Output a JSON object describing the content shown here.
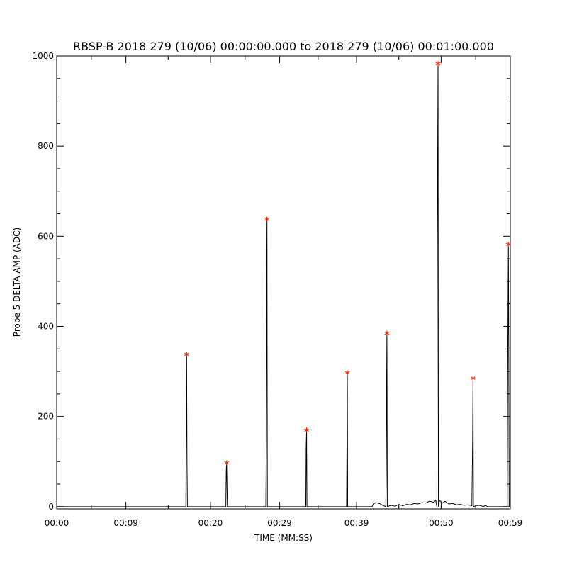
{
  "chart_data": {
    "type": "line",
    "title": "RBSP-B 2018 279 (10/06) 00:00:00.000 to 2018 279 (10/06) 00:01:00.000",
    "xlabel": "TIME (MM:SS)",
    "ylabel": "Probe 5 DELTA AMP (ADC)",
    "xlim": [
      0,
      59
    ],
    "ylim": [
      -5,
      1000
    ],
    "x_ticks": [
      {
        "value": 0,
        "label": "00:00"
      },
      {
        "value": 9,
        "label": "00:09"
      },
      {
        "value": 20,
        "label": "00:20"
      },
      {
        "value": 29,
        "label": "00:29"
      },
      {
        "value": 39,
        "label": "00:39"
      },
      {
        "value": 50,
        "label": "00:50"
      },
      {
        "value": 59,
        "label": "00:59"
      }
    ],
    "y_ticks": [
      {
        "value": 0,
        "label": "0"
      },
      {
        "value": 200,
        "label": "200"
      },
      {
        "value": 400,
        "label": "400"
      },
      {
        "value": 600,
        "label": "600"
      },
      {
        "value": 800,
        "label": "800"
      },
      {
        "value": 1000,
        "label": "1000"
      }
    ],
    "grid": false,
    "series": [
      {
        "color": "#000000",
        "points": [
          [
            0,
            0
          ],
          [
            16.8,
            0
          ],
          [
            16.85,
            180
          ],
          [
            16.9,
            338
          ],
          [
            16.95,
            90
          ],
          [
            17.0,
            0
          ],
          [
            22.0,
            0
          ],
          [
            22.05,
            80
          ],
          [
            22.1,
            97
          ],
          [
            22.15,
            45
          ],
          [
            22.2,
            0
          ],
          [
            27.2,
            0
          ],
          [
            27.25,
            115
          ],
          [
            27.3,
            435
          ],
          [
            27.35,
            638
          ],
          [
            27.4,
            0
          ],
          [
            32.4,
            0
          ],
          [
            32.45,
            130
          ],
          [
            32.5,
            170
          ],
          [
            32.55,
            0
          ],
          [
            37.7,
            0
          ],
          [
            37.75,
            140
          ],
          [
            37.8,
            297
          ],
          [
            37.85,
            0
          ],
          [
            41.0,
            0
          ],
          [
            41.2,
            6
          ],
          [
            41.5,
            9
          ],
          [
            42.0,
            7
          ],
          [
            42.4,
            3
          ],
          [
            42.8,
            0
          ],
          [
            42.85,
            65
          ],
          [
            42.9,
            245
          ],
          [
            42.95,
            385
          ],
          [
            43.0,
            0
          ],
          [
            43.5,
            3
          ],
          [
            44.0,
            1
          ],
          [
            44.5,
            5
          ],
          [
            45.0,
            2
          ],
          [
            45.5,
            5
          ],
          [
            46.0,
            4
          ],
          [
            46.5,
            7
          ],
          [
            47.0,
            6
          ],
          [
            47.5,
            9
          ],
          [
            48.0,
            8
          ],
          [
            48.5,
            12
          ],
          [
            49.0,
            10
          ],
          [
            49.3,
            14
          ],
          [
            49.45,
            0
          ],
          [
            49.5,
            575
          ],
          [
            49.55,
            768
          ],
          [
            49.6,
            983
          ],
          [
            49.65,
            0
          ],
          [
            49.8,
            14
          ],
          [
            50.2,
            8
          ],
          [
            50.5,
            12
          ],
          [
            51.0,
            6
          ],
          [
            51.5,
            7
          ],
          [
            52.0,
            4
          ],
          [
            52.5,
            5
          ],
          [
            53.0,
            3
          ],
          [
            53.5,
            4
          ],
          [
            54.0,
            2
          ],
          [
            54.1,
            150
          ],
          [
            54.15,
            285
          ],
          [
            54.2,
            0
          ],
          [
            54.5,
            2
          ],
          [
            55.0,
            3
          ],
          [
            55.5,
            0
          ],
          [
            55.8,
            3
          ],
          [
            56.0,
            0
          ],
          [
            58.6,
            0
          ],
          [
            58.65,
            250
          ],
          [
            58.7,
            435
          ],
          [
            58.75,
            582
          ],
          [
            58.8,
            335
          ],
          [
            58.85,
            0
          ]
        ]
      }
    ],
    "markers": {
      "color": "#ff2200",
      "symbol": "asterisk",
      "points": [
        [
          16.9,
          338
        ],
        [
          22.1,
          97
        ],
        [
          27.35,
          638
        ],
        [
          32.5,
          170
        ],
        [
          37.8,
          297
        ],
        [
          42.95,
          385
        ],
        [
          49.6,
          983
        ],
        [
          54.15,
          285
        ],
        [
          58.75,
          582
        ]
      ]
    }
  }
}
